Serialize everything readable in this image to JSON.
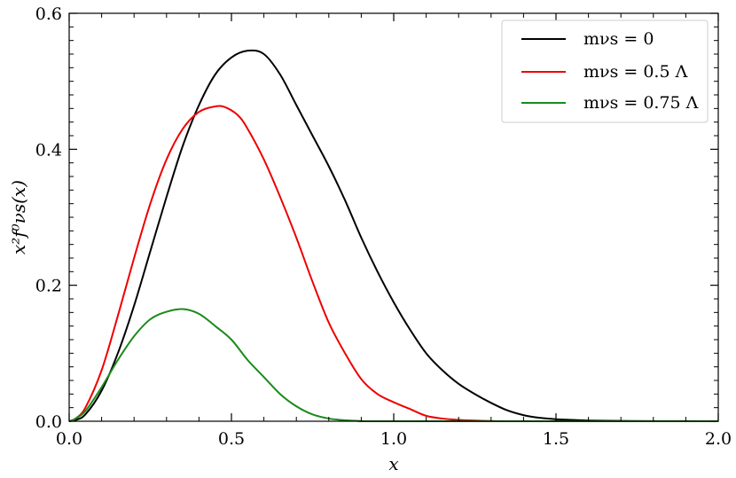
{
  "chart_data": {
    "type": "line",
    "title": "",
    "xlabel": "x",
    "ylabel": "x²f⁰νs(x)",
    "xlim": [
      0.0,
      2.0
    ],
    "ylim": [
      0.0,
      0.6
    ],
    "x_ticks": [
      "0.0",
      "0.5",
      "1.0",
      "1.5",
      "2.0"
    ],
    "y_ticks": [
      "0.0",
      "0.2",
      "0.4",
      "0.6"
    ],
    "grid": false,
    "legend_position": "top-right",
    "series": [
      {
        "name": "mνs = 0",
        "color": "#000000",
        "x": [
          0.0,
          0.02,
          0.05,
          0.1,
          0.15,
          0.2,
          0.25,
          0.3,
          0.35,
          0.4,
          0.45,
          0.5,
          0.55,
          0.6,
          0.65,
          0.7,
          0.75,
          0.8,
          0.85,
          0.9,
          0.95,
          1.0,
          1.05,
          1.1,
          1.15,
          1.2,
          1.25,
          1.3,
          1.35,
          1.4,
          1.45,
          1.5,
          1.55,
          1.6,
          1.7,
          1.8,
          2.0
        ],
        "y": [
          0.0,
          0.002,
          0.01,
          0.045,
          0.1,
          0.17,
          0.25,
          0.33,
          0.405,
          0.465,
          0.51,
          0.535,
          0.545,
          0.54,
          0.51,
          0.465,
          0.42,
          0.375,
          0.325,
          0.27,
          0.22,
          0.175,
          0.135,
          0.1,
          0.075,
          0.055,
          0.04,
          0.027,
          0.016,
          0.009,
          0.005,
          0.003,
          0.002,
          0.001,
          0.0005,
          0.0002,
          0.0
        ]
      },
      {
        "name": "mνs = 0.5 Λ",
        "color": "#ee0000",
        "x": [
          0.0,
          0.02,
          0.05,
          0.1,
          0.15,
          0.2,
          0.25,
          0.3,
          0.35,
          0.4,
          0.45,
          0.48,
          0.52,
          0.55,
          0.6,
          0.65,
          0.7,
          0.75,
          0.8,
          0.85,
          0.9,
          0.95,
          1.0,
          1.05,
          1.1,
          1.15,
          1.2,
          1.25,
          1.3,
          1.4,
          2.0
        ],
        "y": [
          0.0,
          0.004,
          0.02,
          0.075,
          0.155,
          0.24,
          0.32,
          0.385,
          0.43,
          0.455,
          0.463,
          0.462,
          0.45,
          0.43,
          0.385,
          0.33,
          0.27,
          0.205,
          0.145,
          0.1,
          0.062,
          0.04,
          0.028,
          0.018,
          0.008,
          0.004,
          0.002,
          0.001,
          0.0003,
          0.0,
          0.0
        ]
      },
      {
        "name": "mνs = 0.75 Λ",
        "color": "#1a8a1a",
        "x": [
          0.0,
          0.02,
          0.05,
          0.1,
          0.15,
          0.2,
          0.25,
          0.3,
          0.35,
          0.4,
          0.45,
          0.5,
          0.55,
          0.6,
          0.65,
          0.7,
          0.75,
          0.8,
          0.85,
          0.9,
          1.0,
          2.0
        ],
        "y": [
          0.0,
          0.004,
          0.015,
          0.05,
          0.09,
          0.125,
          0.15,
          0.161,
          0.165,
          0.158,
          0.14,
          0.12,
          0.09,
          0.065,
          0.04,
          0.022,
          0.01,
          0.004,
          0.0015,
          0.0004,
          0.0,
          0.0
        ]
      }
    ]
  }
}
